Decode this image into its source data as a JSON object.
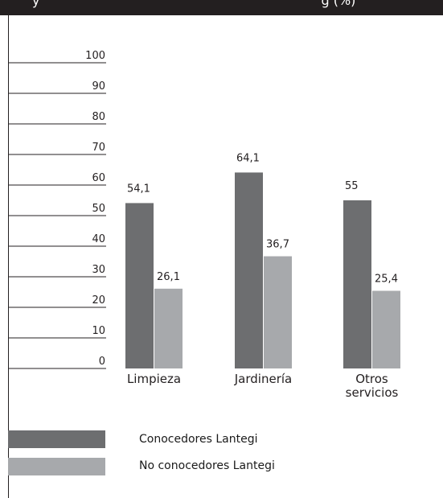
{
  "header": {
    "title_fragment_left": "y",
    "title_fragment_right": "g     (%)"
  },
  "chart_data": {
    "type": "bar",
    "categories": [
      "Limpieza",
      "Jardinería",
      "Otros servicios"
    ],
    "category_lines": [
      [
        "Limpieza"
      ],
      [
        "Jardinería"
      ],
      [
        "Otros",
        "servicios"
      ]
    ],
    "series": [
      {
        "name": "Conocedores Lantegi",
        "values": [
          54.1,
          64.1,
          55
        ],
        "labels": [
          "54,1",
          "64,1",
          "55"
        ],
        "color": "#6d6e70"
      },
      {
        "name": "No conocedores Lantegi",
        "values": [
          26.1,
          36.7,
          25.4
        ],
        "labels": [
          "26,1",
          "36,7",
          "25,4"
        ],
        "color": "#a7a9ac"
      }
    ],
    "yticks": [
      0,
      10,
      20,
      30,
      40,
      50,
      60,
      70,
      80,
      90,
      100
    ],
    "ylim": [
      0,
      100
    ],
    "title": "",
    "xlabel": "",
    "ylabel": "",
    "grid": false,
    "legend_placement": "bottom-left"
  }
}
